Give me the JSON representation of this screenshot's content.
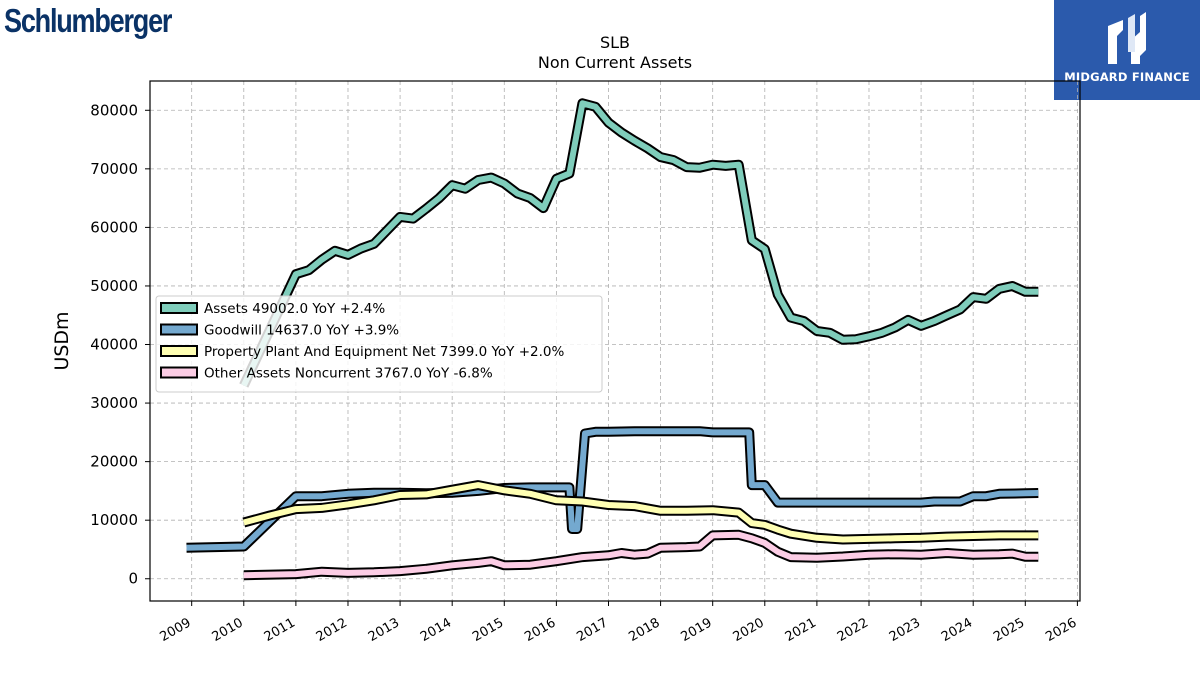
{
  "brand": {
    "left_logo": "Schlumberger",
    "right_logo": "MIDGARD FINANCE"
  },
  "chart_data": {
    "type": "line",
    "title": "SLB",
    "subtitle": "Non Current  Assets",
    "ylabel": "USDm",
    "xlabel": "",
    "xlim": [
      2008.2,
      2026.05
    ],
    "ylim": [
      -3800,
      85000
    ],
    "x_ticks": [
      "2009",
      "2010",
      "2011",
      "2012",
      "2013",
      "2014",
      "2015",
      "2016",
      "2017",
      "2018",
      "2019",
      "2020",
      "2021",
      "2022",
      "2023",
      "2024",
      "2025",
      "2026"
    ],
    "y_ticks": [
      "0",
      "10000",
      "20000",
      "30000",
      "40000",
      "50000",
      "60000",
      "70000",
      "80000"
    ],
    "grid": true,
    "legend_position": "center-left",
    "series": [
      {
        "name": "Assets  49002.0 YoY +2.4%",
        "color": "#7fcdbb",
        "points": [
          [
            2010.0,
            33000
          ],
          [
            2011.0,
            52000
          ],
          [
            2011.25,
            52700
          ],
          [
            2011.5,
            54500
          ],
          [
            2011.75,
            56000
          ],
          [
            2012.0,
            55300
          ],
          [
            2012.25,
            56400
          ],
          [
            2012.5,
            57200
          ],
          [
            2012.75,
            59500
          ],
          [
            2013.0,
            61800
          ],
          [
            2013.25,
            61500
          ],
          [
            2013.5,
            63200
          ],
          [
            2013.75,
            65000
          ],
          [
            2014.0,
            67200
          ],
          [
            2014.25,
            66600
          ],
          [
            2014.5,
            68100
          ],
          [
            2014.75,
            68500
          ],
          [
            2015.0,
            67500
          ],
          [
            2015.25,
            65800
          ],
          [
            2015.5,
            65000
          ],
          [
            2015.75,
            63300
          ],
          [
            2016.0,
            68300
          ],
          [
            2016.25,
            69200
          ],
          [
            2016.5,
            81200
          ],
          [
            2016.75,
            80600
          ],
          [
            2017.0,
            77900
          ],
          [
            2017.25,
            76200
          ],
          [
            2017.5,
            74800
          ],
          [
            2017.75,
            73500
          ],
          [
            2018.0,
            72000
          ],
          [
            2018.25,
            71500
          ],
          [
            2018.5,
            70300
          ],
          [
            2018.75,
            70200
          ],
          [
            2019.0,
            70700
          ],
          [
            2019.25,
            70500
          ],
          [
            2019.5,
            70700
          ],
          [
            2019.75,
            57800
          ],
          [
            2020.0,
            56300
          ],
          [
            2020.25,
            48500
          ],
          [
            2020.5,
            44600
          ],
          [
            2020.75,
            44000
          ],
          [
            2021.0,
            42300
          ],
          [
            2021.25,
            42000
          ],
          [
            2021.5,
            40800
          ],
          [
            2021.75,
            40900
          ],
          [
            2022.0,
            41400
          ],
          [
            2022.25,
            42000
          ],
          [
            2022.5,
            42900
          ],
          [
            2022.75,
            44200
          ],
          [
            2023.0,
            43200
          ],
          [
            2023.25,
            44000
          ],
          [
            2023.5,
            45000
          ],
          [
            2023.75,
            46000
          ],
          [
            2024.0,
            48100
          ],
          [
            2024.25,
            47800
          ],
          [
            2024.5,
            49500
          ],
          [
            2024.75,
            50000
          ],
          [
            2025.0,
            49000
          ],
          [
            2025.25,
            49002
          ]
        ]
      },
      {
        "name": "Goodwill  14637.0 YoY +3.9%",
        "color": "#74a9cf",
        "points": [
          [
            2008.9,
            5300
          ],
          [
            2010.0,
            5500
          ],
          [
            2011.0,
            14100
          ],
          [
            2011.5,
            14100
          ],
          [
            2012.0,
            14500
          ],
          [
            2012.5,
            14700
          ],
          [
            2013.0,
            14700
          ],
          [
            2013.5,
            14600
          ],
          [
            2014.0,
            14700
          ],
          [
            2014.5,
            15000
          ],
          [
            2015.0,
            15500
          ],
          [
            2015.5,
            15600
          ],
          [
            2016.0,
            15600
          ],
          [
            2016.25,
            15600
          ],
          [
            2016.3,
            8500
          ],
          [
            2016.4,
            8500
          ],
          [
            2016.55,
            24800
          ],
          [
            2016.75,
            25100
          ],
          [
            2017.0,
            25100
          ],
          [
            2017.5,
            25200
          ],
          [
            2018.0,
            25200
          ],
          [
            2018.5,
            25200
          ],
          [
            2018.75,
            25200
          ],
          [
            2019.0,
            25000
          ],
          [
            2019.5,
            25000
          ],
          [
            2019.7,
            25000
          ],
          [
            2019.75,
            16000
          ],
          [
            2020.0,
            16000
          ],
          [
            2020.25,
            13000
          ],
          [
            2020.5,
            13000
          ],
          [
            2021.0,
            13000
          ],
          [
            2021.5,
            13000
          ],
          [
            2022.0,
            13000
          ],
          [
            2022.5,
            13000
          ],
          [
            2023.0,
            13000
          ],
          [
            2023.25,
            13200
          ],
          [
            2023.75,
            13200
          ],
          [
            2024.0,
            14100
          ],
          [
            2024.25,
            14100
          ],
          [
            2024.5,
            14500
          ],
          [
            2025.0,
            14600
          ],
          [
            2025.25,
            14637
          ]
        ]
      },
      {
        "name": "Property Plant And Equipment Net  7399.0 YoY +2.0%",
        "color": "#ffffb3",
        "points": [
          [
            2010.0,
            9600
          ],
          [
            2010.5,
            10800
          ],
          [
            2011.0,
            11900
          ],
          [
            2011.5,
            12100
          ],
          [
            2012.0,
            12700
          ],
          [
            2012.5,
            13400
          ],
          [
            2013.0,
            14300
          ],
          [
            2013.5,
            14400
          ],
          [
            2014.0,
            15200
          ],
          [
            2014.5,
            16000
          ],
          [
            2015.0,
            15100
          ],
          [
            2015.5,
            14500
          ],
          [
            2016.0,
            13400
          ],
          [
            2016.5,
            13200
          ],
          [
            2017.0,
            12600
          ],
          [
            2017.5,
            12400
          ],
          [
            2018.0,
            11600
          ],
          [
            2018.5,
            11600
          ],
          [
            2019.0,
            11700
          ],
          [
            2019.5,
            11300
          ],
          [
            2019.75,
            9500
          ],
          [
            2020.0,
            9200
          ],
          [
            2020.25,
            8400
          ],
          [
            2020.5,
            7700
          ],
          [
            2021.0,
            7000
          ],
          [
            2021.5,
            6700
          ],
          [
            2022.0,
            6800
          ],
          [
            2022.5,
            6900
          ],
          [
            2023.0,
            7000
          ],
          [
            2023.5,
            7200
          ],
          [
            2024.0,
            7300
          ],
          [
            2024.5,
            7400
          ],
          [
            2025.0,
            7400
          ],
          [
            2025.25,
            7399
          ]
        ]
      },
      {
        "name": "Other Assets Noncurrent  3767.0 YoY -6.8%",
        "color": "#fccde5",
        "points": [
          [
            2010.0,
            600
          ],
          [
            2011.0,
            800
          ],
          [
            2011.5,
            1200
          ],
          [
            2012.0,
            1000
          ],
          [
            2012.5,
            1100
          ],
          [
            2013.0,
            1300
          ],
          [
            2013.5,
            1700
          ],
          [
            2014.0,
            2300
          ],
          [
            2014.5,
            2700
          ],
          [
            2014.75,
            3000
          ],
          [
            2015.0,
            2300
          ],
          [
            2015.5,
            2400
          ],
          [
            2016.0,
            3000
          ],
          [
            2016.5,
            3700
          ],
          [
            2017.0,
            4000
          ],
          [
            2017.25,
            4400
          ],
          [
            2017.5,
            4100
          ],
          [
            2017.75,
            4300
          ],
          [
            2018.0,
            5300
          ],
          [
            2018.5,
            5400
          ],
          [
            2018.75,
            5500
          ],
          [
            2019.0,
            7400
          ],
          [
            2019.5,
            7500
          ],
          [
            2019.75,
            6900
          ],
          [
            2020.0,
            6100
          ],
          [
            2020.25,
            4600
          ],
          [
            2020.5,
            3700
          ],
          [
            2021.0,
            3600
          ],
          [
            2021.5,
            3800
          ],
          [
            2022.0,
            4100
          ],
          [
            2022.5,
            4200
          ],
          [
            2023.0,
            4100
          ],
          [
            2023.5,
            4400
          ],
          [
            2024.0,
            4100
          ],
          [
            2024.5,
            4200
          ],
          [
            2024.75,
            4300
          ],
          [
            2025.0,
            3767
          ],
          [
            2025.25,
            3767
          ]
        ]
      }
    ]
  }
}
